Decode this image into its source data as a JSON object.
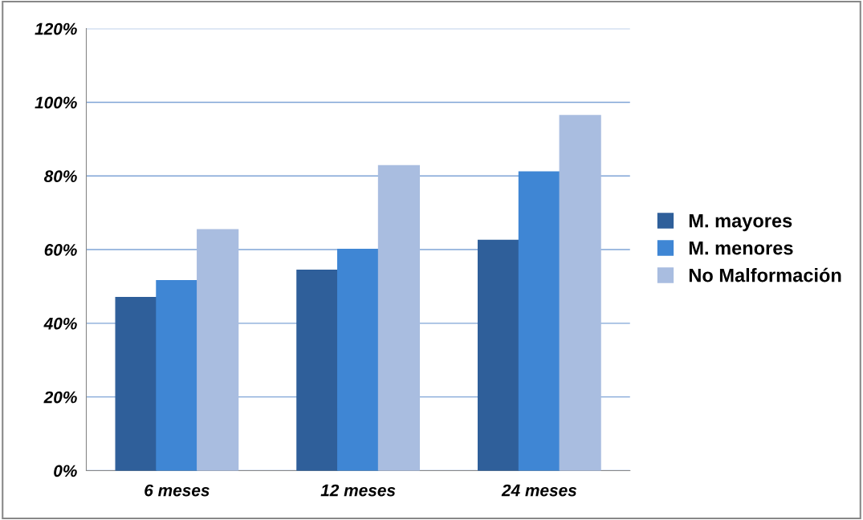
{
  "chart_data": {
    "type": "bar",
    "categories": [
      "6 meses",
      "12 meses",
      "24 meses"
    ],
    "series": [
      {
        "name": "M. mayores",
        "color": "#2f5f9a",
        "values": [
          47,
          54.4,
          62.5
        ]
      },
      {
        "name": "M. menores",
        "color": "#3f86d4",
        "values": [
          51.6,
          60.1,
          81.1
        ]
      },
      {
        "name": "No Malformación",
        "color": "#a9bde0",
        "values": [
          65.4,
          82.8,
          96.4
        ]
      }
    ],
    "ylim": [
      0,
      120
    ],
    "yticks": [
      {
        "value": 0,
        "label": "0%"
      },
      {
        "value": 20,
        "label": "20%"
      },
      {
        "value": 40,
        "label": "40%"
      },
      {
        "value": 60,
        "label": "60%"
      },
      {
        "value": 80,
        "label": "80%"
      },
      {
        "value": 100,
        "label": "100%"
      },
      {
        "value": 120,
        "label": "120%"
      }
    ],
    "grid": "y",
    "legend": "right"
  }
}
